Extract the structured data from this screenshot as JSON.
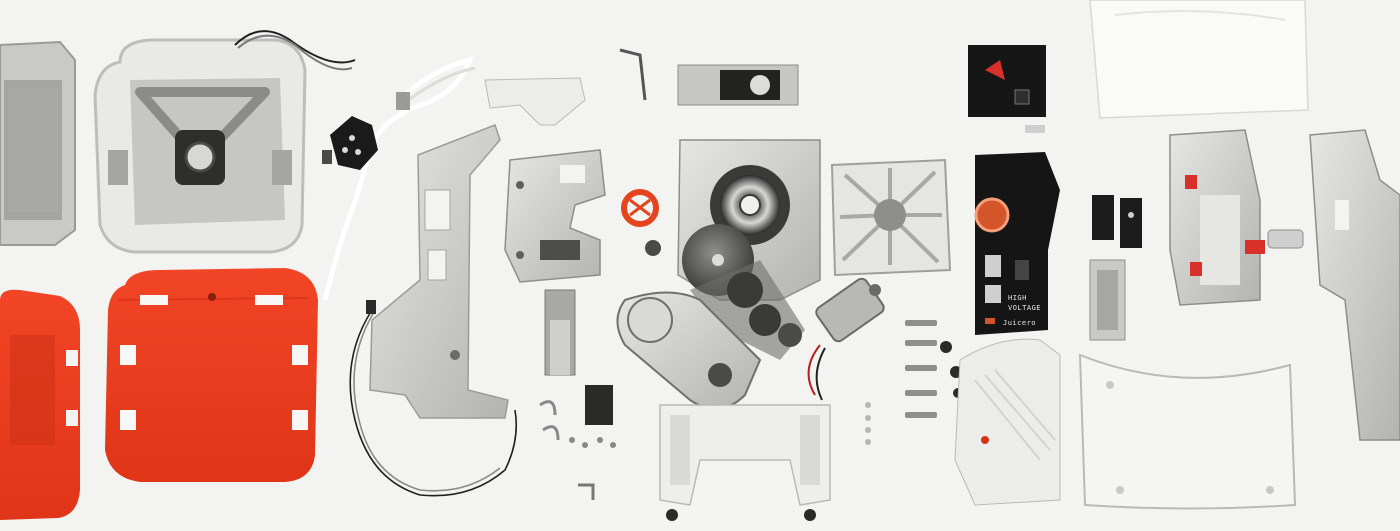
{
  "scene": {
    "kind": "flat-lay teardown photograph of a juicer press",
    "colors": {
      "background": "#f3f3f1",
      "orange_panel": "#ef3a1e",
      "orange_shadow": "#c92d14",
      "metal_light": "#d9d9d6",
      "metal_mid": "#b9bab6",
      "metal_dark": "#8e908c",
      "plastic_white": "#f7f7f5",
      "pcb_black": "#151515",
      "copper": "#d4552a"
    }
  },
  "labels": {
    "pcb_warning_line1": "HIGH",
    "pcb_warning_line2": "VOLTAGE",
    "pcb_brand": "Juicero"
  }
}
